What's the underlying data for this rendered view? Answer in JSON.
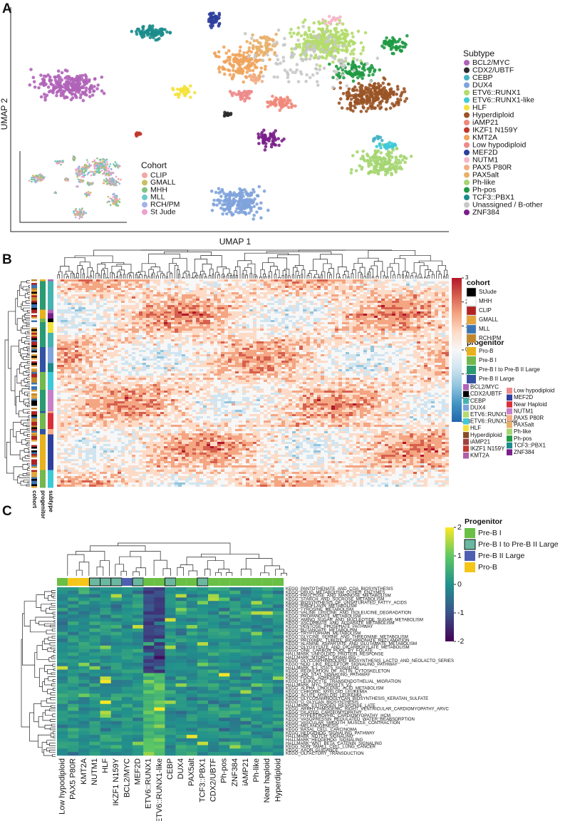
{
  "panel_a": {
    "label": "A",
    "x_label": "UMAP 1",
    "y_label": "UMAP 2",
    "subtype_title": "Subtype",
    "subtypes": [
      {
        "name": "BCL2/MYC",
        "color": "#b063b8"
      },
      {
        "name": "CDX2/UBTF",
        "color": "#2b2b2b"
      },
      {
        "name": "CEBP",
        "color": "#45b3c4"
      },
      {
        "name": "DUX4",
        "color": "#7fa3dc"
      },
      {
        "name": "ETV6::RUNX1",
        "color": "#b3dc6c"
      },
      {
        "name": "ETV6::RUNX1-like",
        "color": "#3ec9d8"
      },
      {
        "name": "HLF",
        "color": "#f4e23a"
      },
      {
        "name": "Hyperdiploid",
        "color": "#9a5426"
      },
      {
        "name": "iAMP21",
        "color": "#f0887a"
      },
      {
        "name": "IKZF1 N159Y",
        "color": "#c0392b"
      },
      {
        "name": "KMT2A",
        "color": "#f0a45c"
      },
      {
        "name": "Low hypodiploid",
        "color": "#ee8a8a"
      },
      {
        "name": "MEF2D",
        "color": "#2e3f9c"
      },
      {
        "name": "NUTM1",
        "color": "#f5b6c8"
      },
      {
        "name": "PAX5 P80R",
        "color": "#f3ad85"
      },
      {
        "name": "PAX5alt",
        "color": "#e9b06a"
      },
      {
        "name": "Ph-like",
        "color": "#a5d672"
      },
      {
        "name": "Ph-pos",
        "color": "#1f9a44"
      },
      {
        "name": "TCF3::PBX1",
        "color": "#1b8c8c"
      },
      {
        "name": "Unassigned / B-other",
        "color": "#c8c8c8"
      },
      {
        "name": "ZNF384",
        "color": "#7a1f8a"
      }
    ],
    "cohort_title": "Cohort",
    "cohorts": [
      {
        "name": "CLIP",
        "color": "#f2a7a0"
      },
      {
        "name": "GMALL",
        "color": "#c8c062"
      },
      {
        "name": "MHH",
        "color": "#80c482"
      },
      {
        "name": "MLL",
        "color": "#6fc9c9"
      },
      {
        "name": "RCH/PM",
        "color": "#a3b2ea"
      },
      {
        "name": "St Jude",
        "color": "#f09fd0"
      }
    ]
  },
  "panel_b": {
    "label": "B",
    "colorbar_ticks": [
      3,
      2,
      1,
      0,
      -1,
      -2,
      -3
    ],
    "annotation_labels": [
      "cohort",
      "progenitor",
      "subtype"
    ],
    "cohort_title": "cohort",
    "cohorts": [
      {
        "name": "StJude",
        "color": "#000000"
      },
      {
        "name": "MHH",
        "color": "#ffffff"
      },
      {
        "name": "CLIP",
        "color": "#b22222"
      },
      {
        "name": "GMALL",
        "color": "#e4a43a"
      },
      {
        "name": "MLL",
        "color": "#3a74b4"
      },
      {
        "name": "RCH/PM",
        "color": "#c2862a"
      }
    ],
    "progenitor_title": "progenitor",
    "progenitors": [
      {
        "name": "Pro-B",
        "color": "#e8b21e"
      },
      {
        "name": "Pre-B I",
        "color": "#72b84e"
      },
      {
        "name": "Pre-B I to Pre-B II Large",
        "color": "#2a9a72"
      },
      {
        "name": "Pre-B II Large",
        "color": "#3352a3"
      }
    ],
    "subtypes": [
      {
        "name": "BCL2/MYC",
        "color": "#b063b8"
      },
      {
        "name": "CDX2/UBTF",
        "color": "#000000"
      },
      {
        "name": "CEBP",
        "color": "#45b3b0"
      },
      {
        "name": "DUX4",
        "color": "#7fa3dc"
      },
      {
        "name": "ETV6::RUNX1",
        "color": "#b3dc6c"
      },
      {
        "name": "ETV6::RUNX1-like",
        "color": "#3ec9d8"
      },
      {
        "name": "HLF",
        "color": "#f4e23a"
      },
      {
        "name": "Hyperdiploid",
        "color": "#8a4a22"
      },
      {
        "name": "iAMP21",
        "color": "#a04040"
      },
      {
        "name": "IKZF1 N159Y",
        "color": "#c0392b"
      },
      {
        "name": "KMT2A",
        "color": "#b060a8"
      },
      {
        "name": "Low hypodiploid",
        "color": "#ee8a8a"
      },
      {
        "name": "MEF2D",
        "color": "#2e3f9c"
      },
      {
        "name": "Near Haploid",
        "color": "#d8303a"
      },
      {
        "name": "NUTM1",
        "color": "#c880c8"
      },
      {
        "name": "PAX5 P80R",
        "color": "#f3ad85"
      },
      {
        "name": "PAX5alt",
        "color": "#e9b06a"
      },
      {
        "name": "Ph-like",
        "color": "#a5d672"
      },
      {
        "name": "Ph-pos",
        "color": "#1f9a44"
      },
      {
        "name": "TCF3::PBX1",
        "color": "#1b8c8c"
      },
      {
        "name": "ZNF384",
        "color": "#7a1f8a"
      }
    ]
  },
  "panel_c": {
    "label": "C",
    "colorbar_ticks": [
      2,
      1,
      0,
      -1,
      -2
    ],
    "legend_title": "Progenitor",
    "progenitors": [
      {
        "name": "Pre-B I",
        "color": "#6abf45"
      },
      {
        "name": "Pre-B I to Pre-B II Large",
        "color": "#6ab8a0"
      },
      {
        "name": "Pre-B II Large",
        "color": "#4f5fb0"
      },
      {
        "name": "Pro-B",
        "color": "#f5c518"
      }
    ],
    "columns": [
      {
        "name": "Low hypodiploid",
        "progenitor": "Pre-B I"
      },
      {
        "name": "PAX5 P80R",
        "progenitor": "Pro-B"
      },
      {
        "name": "KMT2A",
        "progenitor": "Pro-B"
      },
      {
        "name": "NUTM1",
        "progenitor": "Pre-B I to Pre-B II Large"
      },
      {
        "name": "HLF",
        "progenitor": "Pre-B I to Pre-B II Large"
      },
      {
        "name": "IKZF1 N159Y",
        "progenitor": "Pre-B I to Pre-B II Large"
      },
      {
        "name": "BCL2/MYC",
        "progenitor": "Pre-B II Large"
      },
      {
        "name": "MEF2D",
        "progenitor": "Pre-B I to Pre-B II Large"
      },
      {
        "name": "ETV6::RUNX1",
        "progenitor": "Pre-B I"
      },
      {
        "name": "ETV6::RUNX1-like",
        "progenitor": "Pre-B I"
      },
      {
        "name": "CEBP",
        "progenitor": "Pre-B I to Pre-B II Large"
      },
      {
        "name": "DUX4",
        "progenitor": "Pre-B I"
      },
      {
        "name": "PAX5alt",
        "progenitor": "Pre-B I"
      },
      {
        "name": "TCF3::PBX1",
        "progenitor": "Pre-B I to Pre-B II Large"
      },
      {
        "name": "CDX2/UBTF",
        "progenitor": "Pre-B I"
      },
      {
        "name": "Ph-pos",
        "progenitor": "Pre-B I"
      },
      {
        "name": "ZNF384",
        "progenitor": "Pre-B I"
      },
      {
        "name": "iAMP21",
        "progenitor": "Pre-B I"
      },
      {
        "name": "Ph-like",
        "progenitor": "Pre-B I"
      },
      {
        "name": "Near haploid",
        "progenitor": "Pre-B I"
      },
      {
        "name": "Hyperdiploid",
        "progenitor": "Pre-B I"
      }
    ],
    "rows": [
      "KEGG_PANTOTHENATE_AND_COA_BIOSYNTHESIS",
      "KEGG_DRUG_METABOLISM_OTHER_ENZYMES",
      "KEGG_FRUCTOSE_AND_MANNOSE_METABOLISM",
      "KEGG_STARCH_AND_SUCROSE_METABOLISM",
      "KEGG_BIOSYNTHESIS_OF_UNSATURATED_FATTY_ACIDS",
      "KEGG_RIBOFLAVIN_METABOLISM",
      "KEGG_TYROSINE_METABOLISM",
      "KEGG_VALINE_LEUCINE_AND_ISOLEUCINE_DEGRADATION",
      "KEGG_PROPANOATE_METABOLISM",
      "KEGG_AMINO_SUGAR_AND_NUCLEOTIDE_SUGAR_METABOLISM",
      "KEGG_ASCORBATE_AND_ALDARATE_METABOLISM",
      "KEGG_PENTOSE_PHOSPHATE_PATHWAY",
      "KEGG_BUTANOATE_METABOLISM",
      "KEGG_TRYPTOPHAN_METABOLISM",
      "KEGG_GLYCINE_SERINE_AND_THREONINE_METABOLISM",
      "KEGG_PROXIMAL_TUBULE_BICARBONATE_RECLAMATION",
      "KEGG_ALANINE_ASPARTATE_AND_GLUTAMATE_METABOLISM",
      "KEGG_GLYOXYLATE_AND_DICARBOXYLATE_METABOLISM",
      "KEGG_ONE_CARBON_POOL_BY_FOLATE",
      "HALLMARK_UNFOLDED_PROTEIN_RESPONSE",
      "HALLMARK_MTORC1_SIGNALING",
      "KEGG_GLYCOSPHINGOLIPID_BIOSYNTHESIS_LACTO_AND_NEOLACTO_SERIES",
      "KEGG_NOD_LIKE_RECEPTOR_SIGNALING_PATHWAY",
      "HALLMARK_IL2_STAT5_SIGNALING",
      "KEGG_REGULATION_OF_ACTIN_CYTOSKELETON",
      "KEGG_JAK_STAT_SIGNALING_PATHWAY",
      "KEGG_FOCAL_ADHESION",
      "KEGG_LEUKOCYTE_TRANSENDOTHELIAL_MIGRATION",
      "HALLMARK_MYC_TARGETS_V2",
      "KEGG_ALPHA_LINOLENIC_ACID_METABOLISM",
      "KEGG_CHRONIC_MYELOID_LEUKEMIA",
      "KEGG_ACUTE_MYELOID_LEUKEMIA",
      "KEGG_GLYCOSAMINOGLYCAN_BIOSYNTHESIS_KERATAN_SULFATE",
      "KEGG_O_GLYCAN_BIOSYNTHESIS",
      "HALLMARK_ESTROGEN_RESPONSE_LATE",
      "KEGG_ARRHYTHMOGENIC_RIGHT_VENTRICULAR_CARDIOMYOPATHY_ARVC",
      "KEGG_DILATED_CARDIOMYOPATHY",
      "KEGG_HYPERTROPHIC_CARDIOMYOPATHY_HCM",
      "KEGG_VASOPRESSIN_REGULATED_WATER_REABSORPTION",
      "KEGG_VASCULAR_SMOOTH_MUSCLE_CONTRACTION",
      "KEGG_MELANOGENESIS",
      "KEGG_BASAL_CELL_CARCINOMA",
      "KEGG_HEDGEHOG_SIGNALING_PATHWAY",
      "HALLMARK_NOTCH_SIGNALING",
      "HALLMARK_HEDGEHOG_SIGNALING",
      "HALLMARK_WNT_BETA_CATENIN_SIGNALING",
      "KEGG_NON_SMALL_CELL_LUNG_CANCER",
      "KEGG_AXON_GUIDANCE",
      "KEGG_OLFACTORY_TRANSDUCTION"
    ]
  }
}
